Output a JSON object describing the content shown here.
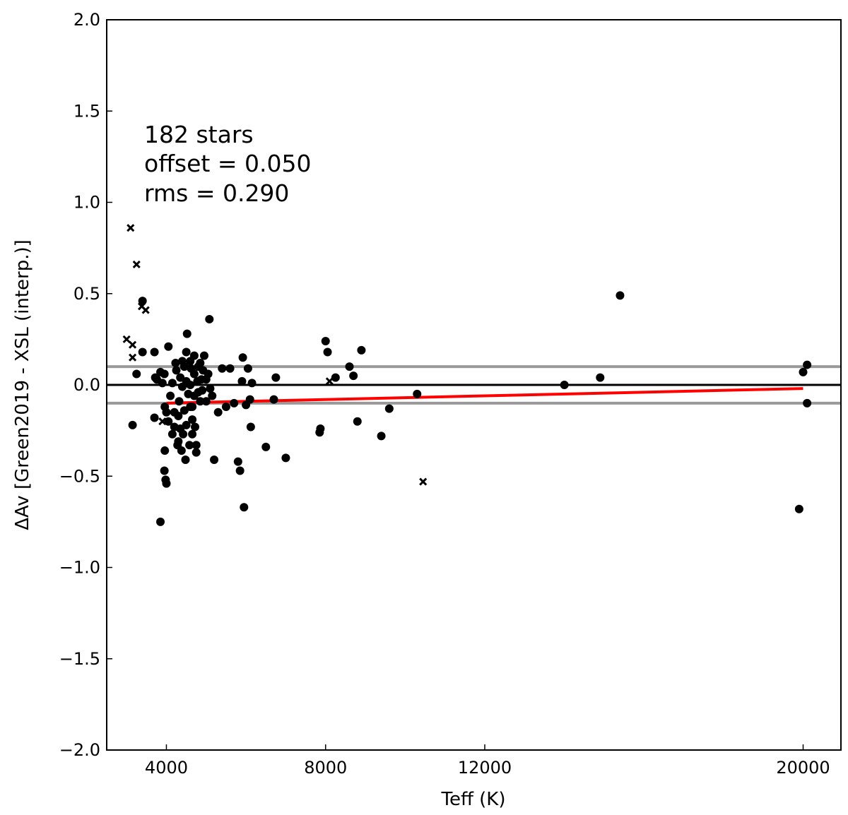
{
  "chart_data": {
    "type": "scatter",
    "xlabel": "Teff (K)",
    "ylabel": "ΔAv [Green2019 - XSL (interp.)]",
    "xlim": [
      2500,
      20950
    ],
    "ylim": [
      -2.0,
      2.0
    ],
    "x_ticks": [
      {
        "value": 4000,
        "label": "4000"
      },
      {
        "value": 8000,
        "label": "8000"
      },
      {
        "value": 12000,
        "label": "12000"
      },
      {
        "value": 20000,
        "label": "20000"
      }
    ],
    "y_ticks": [
      {
        "value": 2.0,
        "label": "2.0"
      },
      {
        "value": 1.5,
        "label": "1.5"
      },
      {
        "value": 1.0,
        "label": "1.0"
      },
      {
        "value": 0.5,
        "label": "0.5"
      },
      {
        "value": 0.0,
        "label": "0.0"
      },
      {
        "value": -0.5,
        "label": "−0.5"
      },
      {
        "value": -1.0,
        "label": "−1.0"
      },
      {
        "value": -1.5,
        "label": "−1.5"
      },
      {
        "value": -2.0,
        "label": "−2.0"
      }
    ],
    "annotations": [
      "182 stars",
      "offset = 0.050",
      "rms = 0.290"
    ],
    "reference_lines": {
      "zero": {
        "y": 0.0,
        "color": "#000000"
      },
      "band": {
        "y": [
          0.1,
          -0.1
        ],
        "color": "#999999"
      }
    },
    "fit_line": {
      "x": [
        4000,
        20000
      ],
      "y": [
        -0.1,
        -0.02
      ],
      "color": "#ff0000"
    },
    "series": [
      {
        "marker": "circle",
        "color": "#000000",
        "points": [
          [
            3700,
            0.18
          ],
          [
            3720,
            0.04
          ],
          [
            3760,
            0.03
          ],
          [
            3850,
            0.07
          ],
          [
            3900,
            0.01
          ],
          [
            3950,
            0.06
          ],
          [
            3700,
            -0.18
          ],
          [
            3850,
            -0.75
          ],
          [
            3950,
            -0.47
          ],
          [
            3980,
            -0.52
          ],
          [
            4000,
            -0.54
          ],
          [
            3960,
            -0.36
          ],
          [
            3960,
            -0.12
          ],
          [
            4000,
            -0.15
          ],
          [
            4050,
            0.21
          ],
          [
            4050,
            -0.2
          ],
          [
            4100,
            -0.06
          ],
          [
            4150,
            0.01
          ],
          [
            4150,
            -0.27
          ],
          [
            4200,
            -0.23
          ],
          [
            4230,
            0.12
          ],
          [
            4250,
            0.08
          ],
          [
            4280,
            -0.33
          ],
          [
            4300,
            -0.17
          ],
          [
            4320,
            -0.09
          ],
          [
            4350,
            0.04
          ],
          [
            4350,
            -0.24
          ],
          [
            4380,
            -0.36
          ],
          [
            4400,
            -0.01
          ],
          [
            4420,
            -0.27
          ],
          [
            4450,
            0.1
          ],
          [
            4450,
            -0.14
          ],
          [
            4480,
            -0.41
          ],
          [
            4500,
            0.18
          ],
          [
            4500,
            0.02
          ],
          [
            4500,
            -0.22
          ],
          [
            4520,
            0.28
          ],
          [
            4550,
            -0.05
          ],
          [
            4580,
            -0.33
          ],
          [
            4600,
            0.13
          ],
          [
            4600,
            -0.12
          ],
          [
            4620,
            0.09
          ],
          [
            4650,
            -0.19
          ],
          [
            4650,
            -0.27
          ],
          [
            4700,
            0.16
          ],
          [
            4700,
            0.06
          ],
          [
            4700,
            -0.06
          ],
          [
            4720,
            -0.23
          ],
          [
            4750,
            -0.37
          ],
          [
            4750,
            -0.33
          ],
          [
            4780,
            0.02
          ],
          [
            4800,
            0.1
          ],
          [
            4800,
            -0.04
          ],
          [
            4850,
            0.12
          ],
          [
            4850,
            -0.09
          ],
          [
            4880,
            0.03
          ],
          [
            4900,
            -0.03
          ],
          [
            4920,
            0.08
          ],
          [
            4950,
            0.16
          ],
          [
            5000,
            0.03
          ],
          [
            5000,
            -0.09
          ],
          [
            5050,
            0.06
          ],
          [
            5080,
            0.36
          ],
          [
            5100,
            -0.02
          ],
          [
            5150,
            -0.06
          ],
          [
            5200,
            -0.41
          ],
          [
            5300,
            -0.15
          ],
          [
            5400,
            0.09
          ],
          [
            5500,
            -0.12
          ],
          [
            5600,
            0.09
          ],
          [
            5700,
            -0.1
          ],
          [
            5800,
            -0.42
          ],
          [
            5850,
            -0.47
          ],
          [
            5900,
            0.02
          ],
          [
            5920,
            0.15
          ],
          [
            5950,
            -0.67
          ],
          [
            6000,
            -0.11
          ],
          [
            6050,
            0.09
          ],
          [
            6100,
            -0.08
          ],
          [
            6120,
            -0.23
          ],
          [
            6150,
            0.01
          ],
          [
            6500,
            -0.34
          ],
          [
            6700,
            -0.08
          ],
          [
            6750,
            0.04
          ],
          [
            7000,
            -0.4
          ],
          [
            7850,
            -0.26
          ],
          [
            7870,
            -0.24
          ],
          [
            8000,
            0.24
          ],
          [
            8050,
            0.18
          ],
          [
            8250,
            0.04
          ],
          [
            8600,
            0.1
          ],
          [
            8700,
            0.05
          ],
          [
            8800,
            -0.2
          ],
          [
            8900,
            0.19
          ],
          [
            9400,
            -0.28
          ],
          [
            9600,
            -0.13
          ],
          [
            10300,
            -0.05
          ],
          [
            14000,
            0.0
          ],
          [
            14900,
            0.04
          ],
          [
            15400,
            0.49
          ],
          [
            19900,
            -0.68
          ],
          [
            20000,
            0.07
          ],
          [
            20100,
            0.11
          ],
          [
            20100,
            -0.1
          ],
          [
            3150,
            -0.22
          ],
          [
            3250,
            0.06
          ],
          [
            3400,
            0.46
          ],
          [
            3400,
            0.18
          ],
          [
            4200,
            -0.15
          ],
          [
            4300,
            -0.31
          ],
          [
            4600,
            0.0
          ],
          [
            4400,
            0.13
          ],
          [
            4650,
            -0.12
          ]
        ]
      },
      {
        "marker": "x",
        "color": "#000000",
        "points": [
          [
            3000,
            0.25
          ],
          [
            3100,
            0.86
          ],
          [
            3150,
            0.22
          ],
          [
            3150,
            0.15
          ],
          [
            3250,
            0.66
          ],
          [
            3380,
            0.43
          ],
          [
            3480,
            0.41
          ],
          [
            8100,
            0.02
          ],
          [
            10450,
            -0.53
          ],
          [
            3900,
            -0.2
          ]
        ]
      }
    ]
  }
}
